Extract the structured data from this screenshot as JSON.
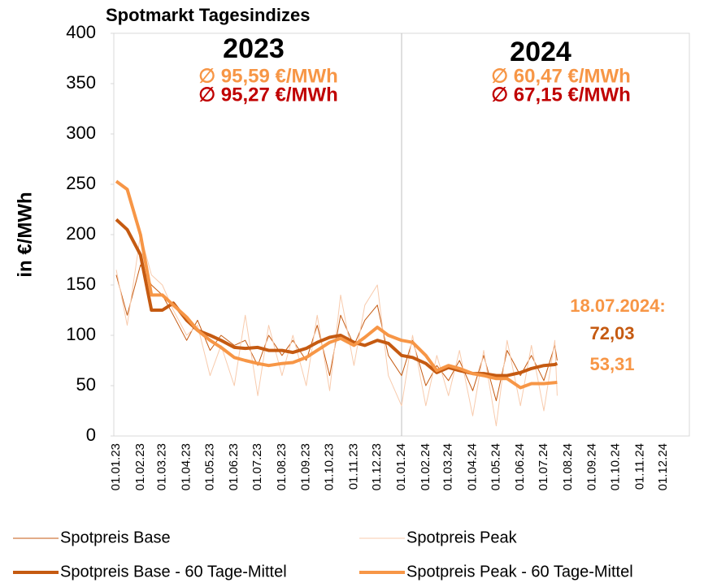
{
  "chart_data": {
    "type": "line",
    "title": "Spotmarkt Tagesindizes",
    "y_label": "in €/MWh",
    "x": [
      "01.01.23",
      "15.01.23",
      "01.02.23",
      "15.02.23",
      "01.03.23",
      "15.03.23",
      "01.04.23",
      "15.04.23",
      "01.05.23",
      "15.05.23",
      "01.06.23",
      "15.06.23",
      "01.07.23",
      "15.07.23",
      "01.08.23",
      "15.08.23",
      "01.09.23",
      "15.09.23",
      "01.10.23",
      "15.10.23",
      "01.11.23",
      "15.11.23",
      "01.12.23",
      "15.12.23",
      "01.01.24",
      "15.01.24",
      "01.02.24",
      "15.02.24",
      "01.03.24",
      "15.03.24",
      "01.04.24",
      "15.04.24",
      "01.05.24",
      "15.05.24",
      "01.06.24",
      "15.06.24",
      "01.07.24",
      "15.07.24",
      "18.07.24"
    ],
    "xlim": [
      "01.01.23",
      "01.01.25"
    ],
    "xticks": [
      "01.01.23",
      "01.02.23",
      "01.03.23",
      "01.04.23",
      "01.05.23",
      "01.06.23",
      "01.07.23",
      "01.08.23",
      "01.09.23",
      "01.10.23",
      "01.11.23",
      "01.12.23",
      "01.01.24",
      "01.02.24",
      "01.03.24",
      "01.04.24",
      "01.05.24",
      "01.06.24",
      "01.07.24",
      "01.08.24",
      "01.09.24",
      "01.10.24",
      "01.11.24",
      "01.12.24"
    ],
    "ylim": [
      0,
      400
    ],
    "yticks": [
      0,
      50,
      100,
      150,
      200,
      250,
      300,
      350,
      400
    ],
    "series": [
      {
        "name": "Spotpreis Base",
        "color": "#c55a11",
        "width": 1,
        "values": [
          160,
          120,
          170,
          150,
          140,
          120,
          95,
          115,
          85,
          100,
          90,
          95,
          70,
          100,
          80,
          95,
          75,
          110,
          60,
          120,
          90,
          115,
          130,
          80,
          60,
          95,
          50,
          70,
          55,
          75,
          45,
          80,
          35,
          85,
          60,
          80,
          55,
          90,
          75
        ]
      },
      {
        "name": "Spotpreis Peak",
        "color": "#f8cbad",
        "width": 1,
        "values": [
          165,
          110,
          200,
          160,
          150,
          125,
          100,
          110,
          60,
          90,
          50,
          120,
          40,
          110,
          60,
          100,
          50,
          120,
          45,
          140,
          70,
          130,
          150,
          60,
          30,
          100,
          30,
          80,
          40,
          85,
          20,
          85,
          10,
          95,
          30,
          90,
          25,
          95,
          40
        ]
      },
      {
        "name": "Spotpreis Base - 60 Tage-Mittel",
        "color": "#c55a11",
        "width": 4,
        "values": [
          215,
          205,
          180,
          125,
          125,
          132,
          115,
          105,
          100,
          95,
          88,
          87,
          88,
          85,
          85,
          83,
          87,
          93,
          98,
          100,
          93,
          90,
          95,
          92,
          80,
          78,
          72,
          63,
          68,
          65,
          62,
          62,
          60,
          60,
          63,
          67,
          70,
          71,
          72.03
        ],
        "last_value_label": "72,03"
      },
      {
        "name": "Spotpreis Peak - 60 Tage-Mittel",
        "color": "#f79646",
        "width": 4,
        "values": [
          253,
          245,
          200,
          140,
          140,
          130,
          118,
          105,
          95,
          88,
          78,
          75,
          72,
          70,
          72,
          73,
          78,
          85,
          93,
          97,
          90,
          98,
          108,
          100,
          95,
          93,
          80,
          65,
          70,
          67,
          62,
          60,
          57,
          57,
          48,
          52,
          52,
          53,
          53.31
        ],
        "last_value_label": "53,31"
      }
    ],
    "annotations": [
      {
        "text": "2023",
        "color": "#000000"
      },
      {
        "text": "∅ 95,59 €/MWh",
        "color": "#f79646"
      },
      {
        "text": "∅ 95,27 €/MWh",
        "color": "#c00000"
      },
      {
        "text": "2024",
        "color": "#000000"
      },
      {
        "text": "∅  60,47 €/MWh",
        "color": "#f79646"
      },
      {
        "text": "∅  67,15 €/MWh",
        "color": "#c00000"
      },
      {
        "text": "18.07.2024:",
        "color": "#f79646"
      }
    ]
  }
}
